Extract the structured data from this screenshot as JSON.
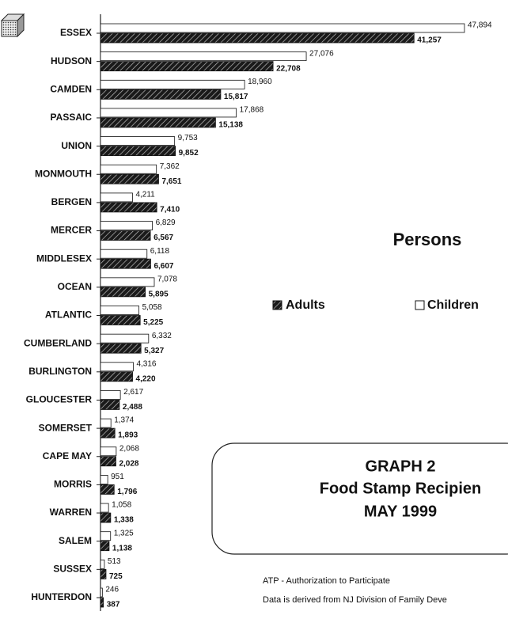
{
  "chart_data": {
    "type": "bar",
    "graph_label": "GRAPH 2",
    "title": "Food Stamp Recipien",
    "date": "MAY 1999",
    "subtitle": "Persons",
    "notes": [
      "ATP - Authorization to Participate",
      "Data is derived from NJ Division of Family Deve"
    ],
    "categories": [
      "ESSEX",
      "HUDSON",
      "CAMDEN",
      "PASSAIC",
      "UNION",
      "MONMOUTH",
      "BERGEN",
      "MERCER",
      "MIDDLESEX",
      "OCEAN",
      "ATLANTIC",
      "CUMBERLAND",
      "BURLINGTON",
      "GLOUCESTER",
      "SOMERSET",
      "CAPE MAY",
      "MORRIS",
      "WARREN",
      "SALEM",
      "SUSSEX",
      "HUNTERDON"
    ],
    "series": [
      {
        "name": "Children",
        "color": "#ffffff",
        "values": [
          47894,
          27076,
          18960,
          17868,
          9753,
          7362,
          4211,
          6829,
          6118,
          7078,
          5058,
          6332,
          4316,
          2617,
          1374,
          2068,
          951,
          1058,
          1325,
          513,
          246
        ],
        "value_labels": [
          "47,894",
          "27,076",
          "18,960",
          "17,868",
          "9,753",
          "7,362",
          "4,211",
          "6,829",
          "6,118",
          "7,078",
          "5,058",
          "6,332",
          "4,316",
          "2,617",
          "1,374",
          "2,068",
          "951",
          "1,058",
          "1,325",
          "513",
          "246"
        ]
      },
      {
        "name": "Adults",
        "color": "#1a1a1a",
        "values": [
          41257,
          22708,
          15817,
          15138,
          9852,
          7651,
          7410,
          6567,
          6607,
          5895,
          5225,
          5327,
          4220,
          2488,
          1893,
          2028,
          1796,
          1338,
          1138,
          725,
          387
        ],
        "value_labels": [
          "41,257",
          "22,708",
          "15,817",
          "15,138",
          "9,852",
          "7,651",
          "7,410",
          "6,567",
          "6,607",
          "5,895",
          "5,225",
          "5,327",
          "4,220",
          "2,488",
          "1,893",
          "2,028",
          "1,796",
          "1,338",
          "1,138",
          "725",
          "387"
        ]
      }
    ]
  }
}
